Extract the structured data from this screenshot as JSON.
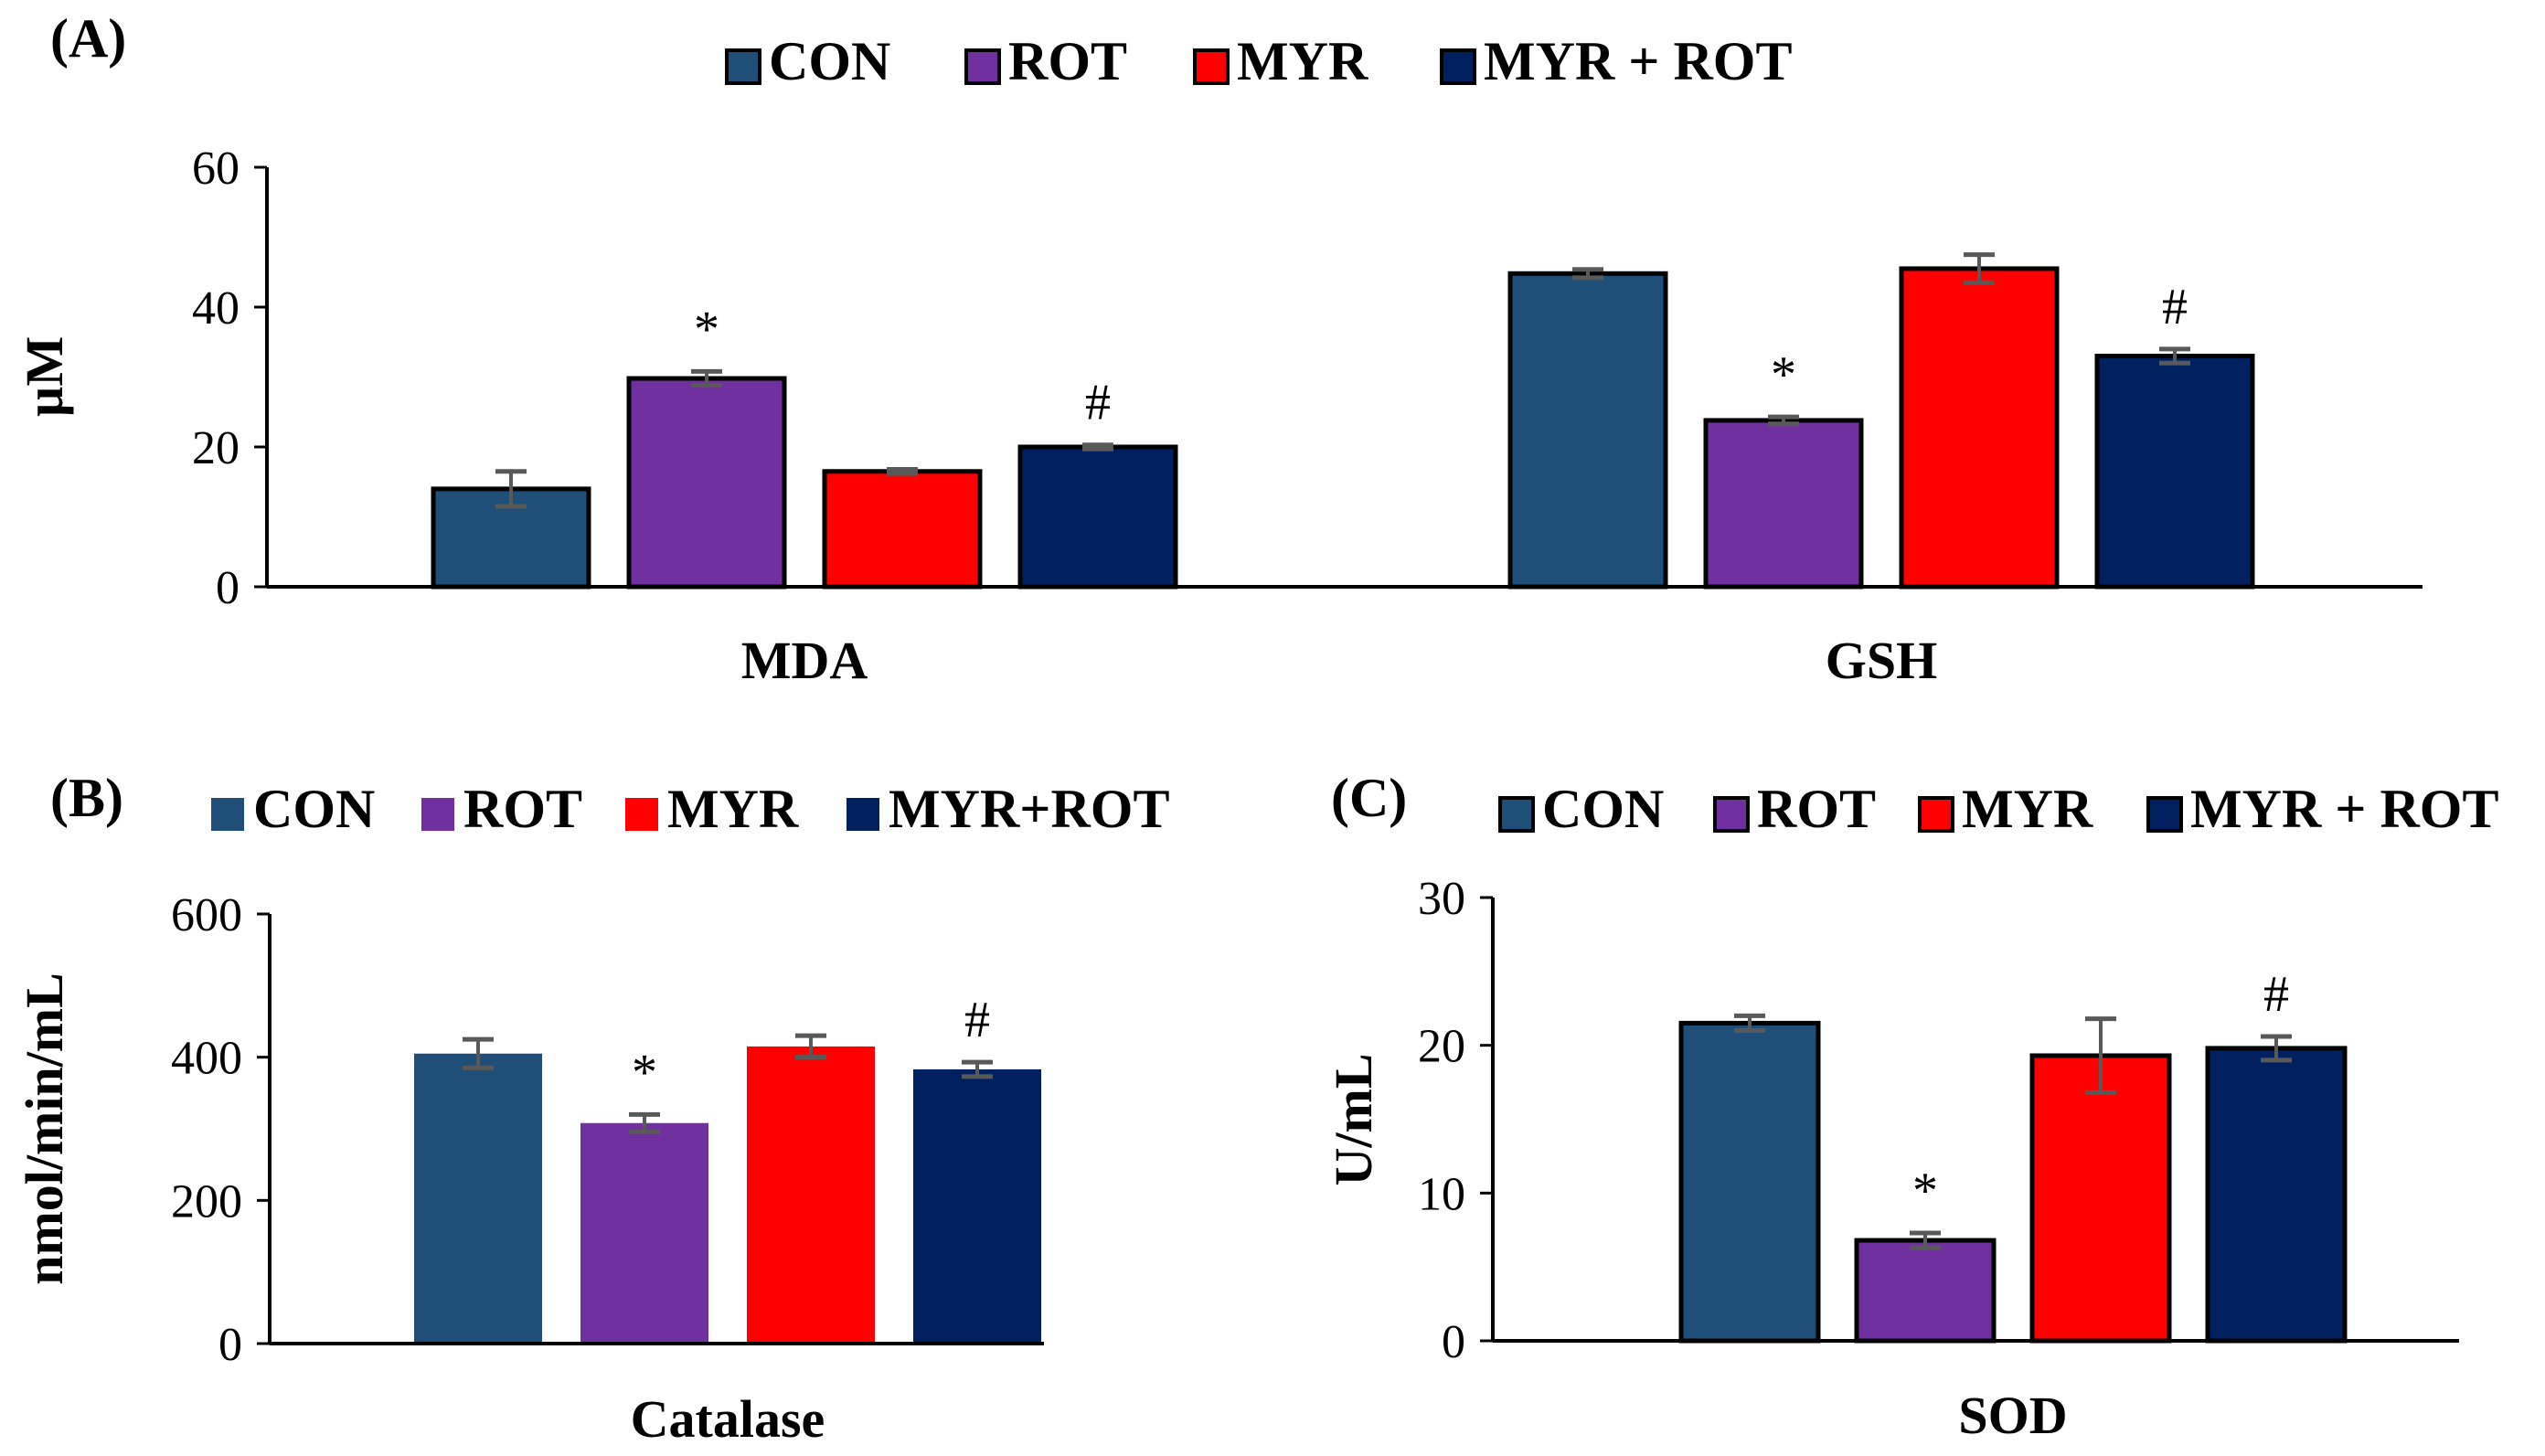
{
  "colors": {
    "CON": "#1f4e79",
    "ROT": "#7030a0",
    "MYR": "#ff0000",
    "MYR_ROT": "#002060",
    "axis": "#000000",
    "error": "#595959"
  },
  "chart_data": [
    {
      "panel_label": "(A)",
      "type": "bar",
      "categories": [
        "MDA",
        "GSH"
      ],
      "series": [
        {
          "name": "CON",
          "values": [
            14,
            44.8
          ],
          "errors": [
            2.5,
            0.6
          ]
        },
        {
          "name": "ROT",
          "values": [
            29.8,
            23.8
          ],
          "errors": [
            1.0,
            0.5
          ]
        },
        {
          "name": "MYR",
          "values": [
            16.5,
            45.5
          ],
          "errors": [
            0.3,
            2.0
          ]
        },
        {
          "name": "MYR + ROT",
          "values": [
            20,
            33
          ],
          "errors": [
            0.3,
            1.0
          ]
        }
      ],
      "legend": [
        "CON",
        "ROT",
        "MYR",
        "MYR + ROT"
      ],
      "annotations": [
        {
          "category": "MDA",
          "series": "ROT",
          "text": "*"
        },
        {
          "category": "MDA",
          "series": "MYR + ROT",
          "text": "#"
        },
        {
          "category": "GSH",
          "series": "ROT",
          "text": "*"
        },
        {
          "category": "GSH",
          "series": "MYR + ROT",
          "text": "#"
        }
      ],
      "ylabel": "µM",
      "ylim": [
        0,
        60
      ],
      "yticks": [
        "0",
        "20",
        "40",
        "60"
      ],
      "bar_outline": true,
      "legend_position": "top"
    },
    {
      "panel_label": "(B)",
      "type": "bar",
      "categories": [
        "Catalase"
      ],
      "series": [
        {
          "name": "CON",
          "values": [
            405
          ],
          "errors": [
            20
          ]
        },
        {
          "name": "ROT",
          "values": [
            308
          ],
          "errors": [
            12
          ]
        },
        {
          "name": "MYR",
          "values": [
            415
          ],
          "errors": [
            15
          ]
        },
        {
          "name": "MYR+ROT",
          "values": [
            383
          ],
          "errors": [
            10
          ]
        }
      ],
      "legend": [
        "CON",
        "ROT",
        "MYR",
        "MYR+ROT"
      ],
      "annotations": [
        {
          "category": "Catalase",
          "series": "ROT",
          "text": "*"
        },
        {
          "category": "Catalase",
          "series": "MYR+ROT",
          "text": "#"
        }
      ],
      "ylabel": "nmol/min/mL",
      "ylim": [
        0,
        600
      ],
      "yticks": [
        "0",
        "200",
        "400",
        "600"
      ],
      "bar_outline": false,
      "legend_position": "top"
    },
    {
      "panel_label": "(C)",
      "type": "bar",
      "categories": [
        "SOD"
      ],
      "series": [
        {
          "name": "CON",
          "values": [
            21.5
          ],
          "errors": [
            0.5
          ]
        },
        {
          "name": "ROT",
          "values": [
            6.8
          ],
          "errors": [
            0.5
          ]
        },
        {
          "name": "MYR",
          "values": [
            19.3
          ],
          "errors": [
            2.5
          ]
        },
        {
          "name": "MYR + ROT",
          "values": [
            19.8
          ],
          "errors": [
            0.8
          ]
        }
      ],
      "legend": [
        "CON",
        "ROT",
        "MYR",
        "MYR + ROT"
      ],
      "annotations": [
        {
          "category": "SOD",
          "series": "ROT",
          "text": "*"
        },
        {
          "category": "SOD",
          "series": "MYR + ROT",
          "text": "#"
        }
      ],
      "ylabel": "U/mL",
      "ylim": [
        0,
        30
      ],
      "yticks": [
        "0",
        "10",
        "20",
        "30"
      ],
      "bar_outline": true,
      "legend_position": "top"
    }
  ]
}
